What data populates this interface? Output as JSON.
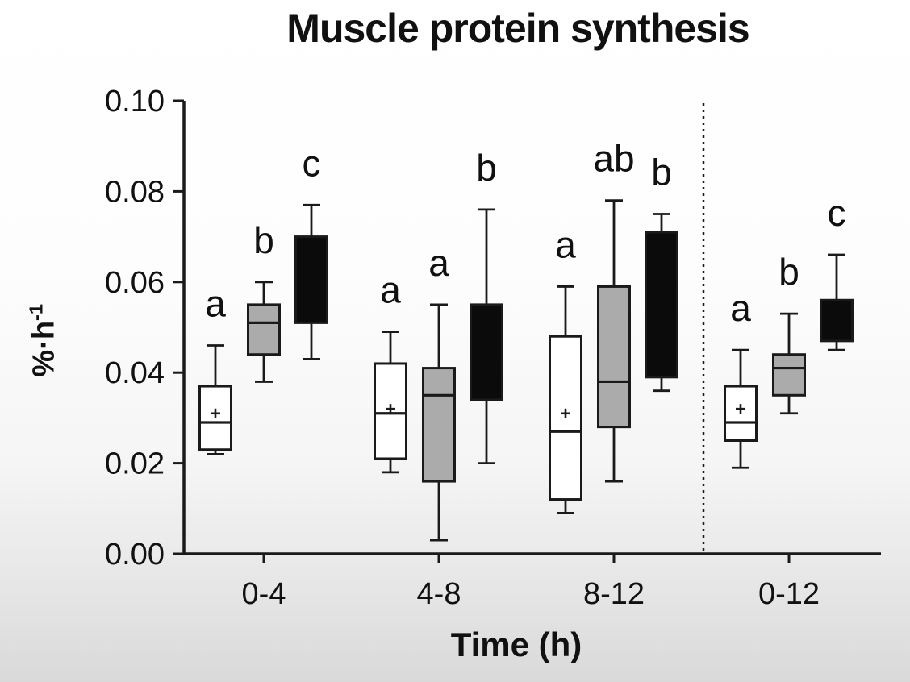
{
  "chart_data": {
    "type": "box",
    "title": "Muscle protein synthesis",
    "ylabel_base": "%·h",
    "ylabel_exponent": "-1",
    "xlabel": "Time (h)",
    "ylim": [
      0,
      0.1
    ],
    "yticks": [
      {
        "value": 0.0,
        "label": "0.00"
      },
      {
        "value": 0.02,
        "label": "0.02"
      },
      {
        "value": 0.04,
        "label": "0.04"
      },
      {
        "value": 0.06,
        "label": "0.06"
      },
      {
        "value": 0.08,
        "label": "0.08"
      },
      {
        "value": 0.1,
        "label": "0.10"
      }
    ],
    "categories": [
      "0-4",
      "4-8",
      "8-12",
      "0-12"
    ],
    "grid": false,
    "legend": "none",
    "separator": {
      "present": true,
      "style": "dashed",
      "between": [
        "8-12",
        "0-12"
      ]
    },
    "mean_marker": "+",
    "series": [
      {
        "name": "white-box-group",
        "fill": "#ffffff",
        "stroke": "#1a1a1a",
        "boxes": [
          {
            "category": "0-4",
            "whisker_low": 0.022,
            "q1": 0.023,
            "median": 0.029,
            "mean": 0.031,
            "q3": 0.037,
            "whisker_high": 0.046,
            "letter": "a"
          },
          {
            "category": "4-8",
            "whisker_low": 0.018,
            "q1": 0.021,
            "median": 0.031,
            "mean": 0.032,
            "q3": 0.042,
            "whisker_high": 0.049,
            "letter": "a"
          },
          {
            "category": "8-12",
            "whisker_low": 0.009,
            "q1": 0.012,
            "median": 0.027,
            "mean": 0.031,
            "q3": 0.048,
            "whisker_high": 0.059,
            "letter": "a"
          },
          {
            "category": "0-12",
            "whisker_low": 0.019,
            "q1": 0.025,
            "median": 0.029,
            "mean": 0.032,
            "q3": 0.037,
            "whisker_high": 0.045,
            "letter": "a"
          }
        ]
      },
      {
        "name": "grey-box-group",
        "fill": "#ababab",
        "stroke": "#1a1a1a",
        "boxes": [
          {
            "category": "0-4",
            "whisker_low": 0.038,
            "q1": 0.044,
            "median": 0.051,
            "mean": null,
            "q3": 0.055,
            "whisker_high": 0.06,
            "letter": "b"
          },
          {
            "category": "4-8",
            "whisker_low": 0.003,
            "q1": 0.016,
            "median": 0.035,
            "mean": null,
            "q3": 0.041,
            "whisker_high": 0.055,
            "letter": "a"
          },
          {
            "category": "8-12",
            "whisker_low": 0.016,
            "q1": 0.028,
            "median": 0.038,
            "mean": null,
            "q3": 0.059,
            "whisker_high": 0.078,
            "letter": "ab"
          },
          {
            "category": "0-12",
            "whisker_low": 0.031,
            "q1": 0.035,
            "median": 0.041,
            "mean": null,
            "q3": 0.044,
            "whisker_high": 0.053,
            "letter": "b"
          }
        ]
      },
      {
        "name": "black-box-group",
        "fill": "#0b0b0b",
        "stroke": "#1a1a1a",
        "boxes": [
          {
            "category": "0-4",
            "whisker_low": 0.043,
            "q1": 0.051,
            "median": null,
            "mean": null,
            "q3": 0.07,
            "whisker_high": 0.077,
            "letter": "c"
          },
          {
            "category": "4-8",
            "whisker_low": 0.02,
            "q1": 0.034,
            "median": null,
            "mean": null,
            "q3": 0.055,
            "whisker_high": 0.076,
            "letter": "b"
          },
          {
            "category": "8-12",
            "whisker_low": 0.036,
            "q1": 0.039,
            "median": null,
            "mean": null,
            "q3": 0.071,
            "whisker_high": 0.075,
            "letter": "b"
          },
          {
            "category": "0-12",
            "whisker_low": 0.045,
            "q1": 0.047,
            "median": null,
            "mean": null,
            "q3": 0.056,
            "whisker_high": 0.066,
            "letter": "c"
          }
        ]
      }
    ]
  },
  "colors": {
    "axis": "#1a1a1a",
    "text": "#111111",
    "white_fill": "#ffffff",
    "grey_fill": "#ababab",
    "black_fill": "#0b0b0b"
  }
}
